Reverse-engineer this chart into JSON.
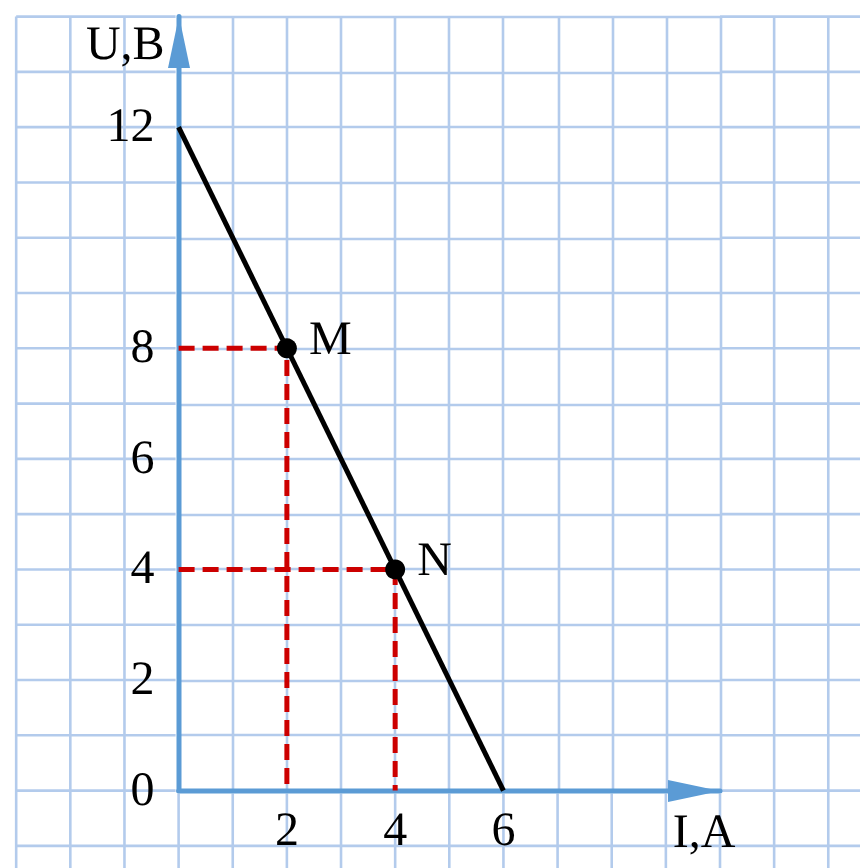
{
  "chart_data": {
    "type": "line",
    "xlabel": "I,A",
    "ylabel": "U,B",
    "xlim": [
      0,
      10
    ],
    "ylim": [
      0,
      14
    ],
    "xticks": [
      {
        "value": 0,
        "label": null
      },
      {
        "value": 1,
        "label": null
      },
      2,
      {
        "value": 3,
        "label": null
      },
      4,
      {
        "value": 5,
        "label": null
      },
      6,
      {
        "value": 7,
        "label": null
      },
      {
        "value": 8,
        "label": null
      },
      {
        "value": 9,
        "label": null
      },
      {
        "value": 10,
        "label": null
      }
    ],
    "yticks": [
      0,
      {
        "value": 1,
        "label": null
      },
      2,
      {
        "value": 3,
        "label": null
      },
      4,
      {
        "value": 5,
        "label": null
      },
      6,
      {
        "value": 7,
        "label": null
      },
      8,
      {
        "value": 9,
        "label": null
      },
      {
        "value": 10,
        "label": null
      },
      {
        "value": 11,
        "label": null
      },
      12,
      {
        "value": 13,
        "label": null
      },
      {
        "value": 14,
        "label": null
      }
    ],
    "grid": true,
    "series": [
      {
        "x": [
          0,
          2,
          2
        ],
        "values": [
          8,
          8,
          0
        ],
        "color": "#cc0000",
        "line_style": "dashed",
        "marker": "none"
      },
      {
        "x": [
          0,
          4,
          4
        ],
        "values": [
          4,
          4,
          0
        ],
        "color": "#cc0000",
        "line_style": "dashed",
        "marker": "none"
      },
      {
        "x": [
          0,
          6
        ],
        "values": [
          12,
          0
        ],
        "color": "#000000",
        "line_style": "solid",
        "marker": "none"
      },
      {
        "type": "scatter",
        "x": [
          2,
          4
        ],
        "values": [
          8,
          4
        ],
        "color": "#000000",
        "marker": "circle"
      }
    ],
    "annotations": [
      {
        "text": "M",
        "x": 2,
        "y": 8
      },
      {
        "text": "N",
        "x": 4,
        "y": 4
      }
    ]
  }
}
